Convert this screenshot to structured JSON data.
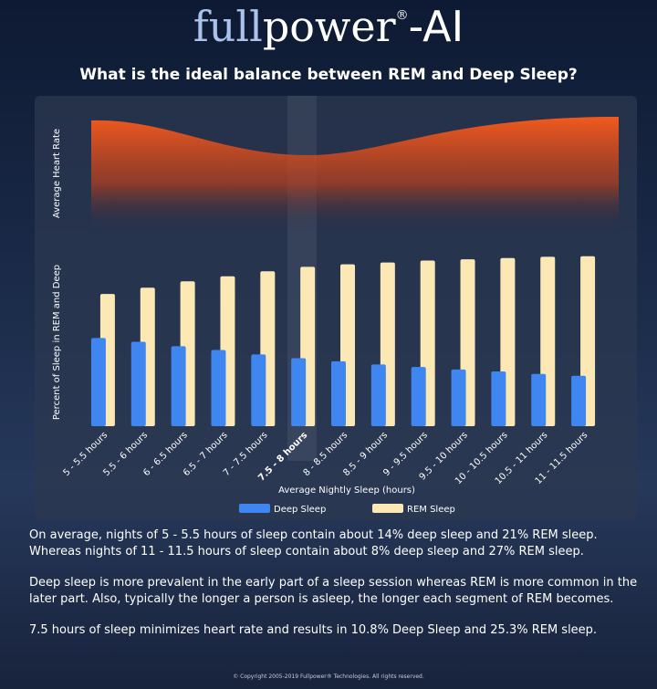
{
  "header": {
    "logo": [
      "full",
      "power",
      "®",
      "-AI"
    ],
    "title": "What is the ideal balance between REM and Deep Sleep?"
  },
  "chart_data": {
    "type": "bar",
    "heart_rate_label": "Average Heart Rate",
    "y_label": "Percent of Sleep in REM and Deep",
    "x_label": "Average Nightly Sleep (hours)",
    "categories": [
      "5 - 5.5 hours",
      "5.5 - 6 hours",
      "6 - 6.5 hours",
      "6.5 - 7 hours",
      "7 - 7.5 hours",
      "7.5 - 8 hours",
      "8 - 8.5 hours",
      "8.5 - 9 hours",
      "9 - 9.5 hours",
      "9.5 - 10 hours",
      "10 - 10.5 hours",
      "10.5 - 11 hours",
      "11 - 11.5 hours"
    ],
    "highlight_index": 5,
    "series": [
      {
        "name": "Deep Sleep",
        "color": "#3f86f0",
        "values": [
          14,
          13.4,
          12.7,
          12.1,
          11.4,
          10.8,
          10.3,
          9.8,
          9.4,
          9.0,
          8.7,
          8.3,
          8
        ]
      },
      {
        "name": "REM Sleep",
        "color": "#fbe8b4",
        "values": [
          21,
          22,
          23,
          23.8,
          24.6,
          25.3,
          25.7,
          26,
          26.3,
          26.5,
          26.7,
          26.9,
          27
        ]
      }
    ],
    "ylim": [
      0,
      30
    ]
  },
  "notes": [
    "On average, nights of 5 - 5.5 hours of sleep contain about 14% deep sleep and 21% REM sleep. Whereas nights of 11 - 11.5 hours of sleep contain about 8% deep sleep and 27% REM sleep.",
    "Deep sleep is more prevalent in the early part of a sleep session whereas REM is more common in the later part. Also, typically the longer a person is asleep, the longer each segment of REM becomes.",
    "7.5 hours of sleep minimizes heart rate and results in 10.8% Deep Sleep and 25.3% REM sleep."
  ],
  "footer": "© Copyright 2005-2019 Fullpower® Technologies. All rights reserved."
}
